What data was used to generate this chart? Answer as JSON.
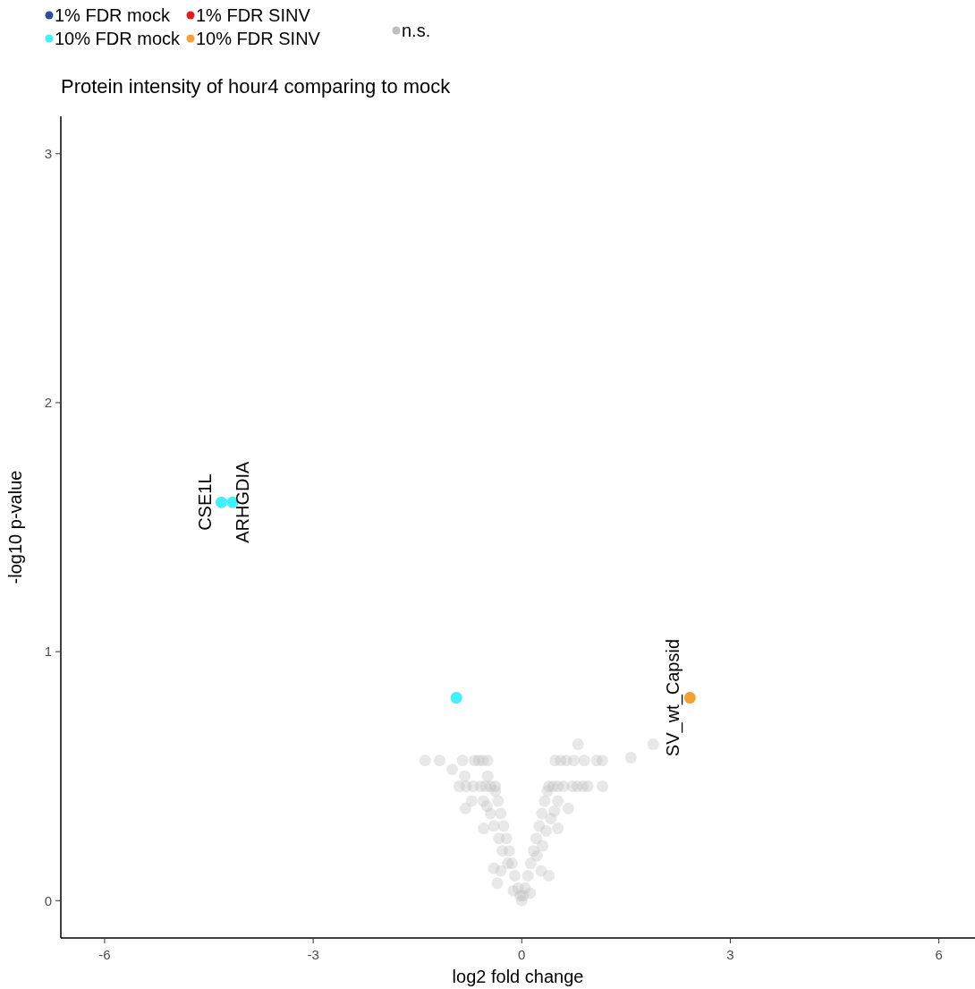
{
  "chart_data": {
    "type": "scatter",
    "title": "Protein intensity of hour4 comparing to mock",
    "xlabel": "log2 fold change",
    "ylabel": "-log10 p-value",
    "xlim": [
      -6.63,
      6.52
    ],
    "xticks": [
      -6,
      -3,
      0,
      3,
      6
    ],
    "ylim": [
      -0.15,
      3.15
    ],
    "yticks": [
      0,
      1,
      2,
      3
    ],
    "grid": false,
    "legend": "top left",
    "marker": "circle",
    "series": [
      {
        "name": "1% FDR mock",
        "color": "#2b4c9b"
      },
      {
        "name": "10% FDR mock",
        "color": "#40f0fa",
        "x": [
          -4.32,
          -4.16,
          -0.94
        ],
        "values": [
          1.6,
          1.6,
          0.815
        ]
      },
      {
        "name": "1% FDR SINV",
        "color": "#e41a1c"
      },
      {
        "name": "10% FDR SINV",
        "color": "#f7a032",
        "x": [
          2.42
        ],
        "values": [
          0.815
        ]
      },
      {
        "name": "n.s.",
        "color": "#bebebe",
        "x": [
          -0.05,
          -0.1,
          -0.14,
          -0.18,
          -0.22,
          -0.26,
          -0.3,
          -0.34,
          -0.38,
          -0.2,
          -0.28,
          -0.33,
          -0.4,
          -0.45,
          -0.5,
          -0.55,
          -0.12,
          -0.3,
          -0.35,
          0.05,
          0.09,
          0.13,
          0.17,
          0.21,
          0.25,
          0.29,
          0.33,
          0.37,
          0.22,
          0.3,
          0.35,
          0.42,
          0.47,
          0.52,
          0.28,
          0.12,
          0.67,
          0.52,
          0.39,
          -0.81,
          -0.72,
          -0.55,
          -0.4,
          -1.39,
          -1.18,
          -0.85,
          -0.68,
          -0.62,
          -0.56,
          -0.49,
          0.48,
          0.56,
          0.64,
          0.75,
          0.9,
          1.08,
          1.16,
          1.57,
          0.81,
          1.89,
          -1.0,
          -0.82,
          -0.49,
          -0.9,
          -0.8,
          -0.7,
          -0.59,
          -0.52,
          -0.45,
          -0.38,
          0.39,
          0.45,
          0.52,
          0.6,
          0.73,
          0.8,
          0.88,
          0.95,
          1.16,
          0,
          0.02,
          -0.02
        ],
        "values": [
          0.05,
          0.1,
          0.15,
          0.2,
          0.25,
          0.3,
          0.35,
          0.4,
          0.44,
          0.15,
          0.2,
          0.25,
          0.3,
          0.35,
          0.38,
          0.4,
          0.04,
          0.12,
          0.07,
          0.05,
          0.1,
          0.15,
          0.2,
          0.25,
          0.3,
          0.35,
          0.4,
          0.44,
          0.18,
          0.22,
          0.28,
          0.33,
          0.36,
          0.4,
          0.12,
          0.03,
          0.37,
          0.29,
          0.1,
          0.37,
          0.4,
          0.29,
          0.13,
          0.563,
          0.563,
          0.563,
          0.563,
          0.563,
          0.563,
          0.563,
          0.563,
          0.563,
          0.563,
          0.563,
          0.563,
          0.563,
          0.563,
          0.574,
          0.628,
          0.628,
          0.527,
          0.5,
          0.5,
          0.459,
          0.459,
          0.459,
          0.459,
          0.459,
          0.459,
          0.459,
          0.459,
          0.459,
          0.459,
          0.459,
          0.459,
          0.459,
          0.459,
          0.459,
          0.459,
          0.0,
          0.02,
          0.02
        ]
      }
    ],
    "annotations": [
      {
        "text": "CSE1L",
        "x": -4.32,
        "y": 1.6
      },
      {
        "text": "ARHGDIA",
        "x": -4.16,
        "y": 1.6
      },
      {
        "text": "SV_wt_Capsid",
        "x": 2.42,
        "y": 0.815
      }
    ]
  }
}
